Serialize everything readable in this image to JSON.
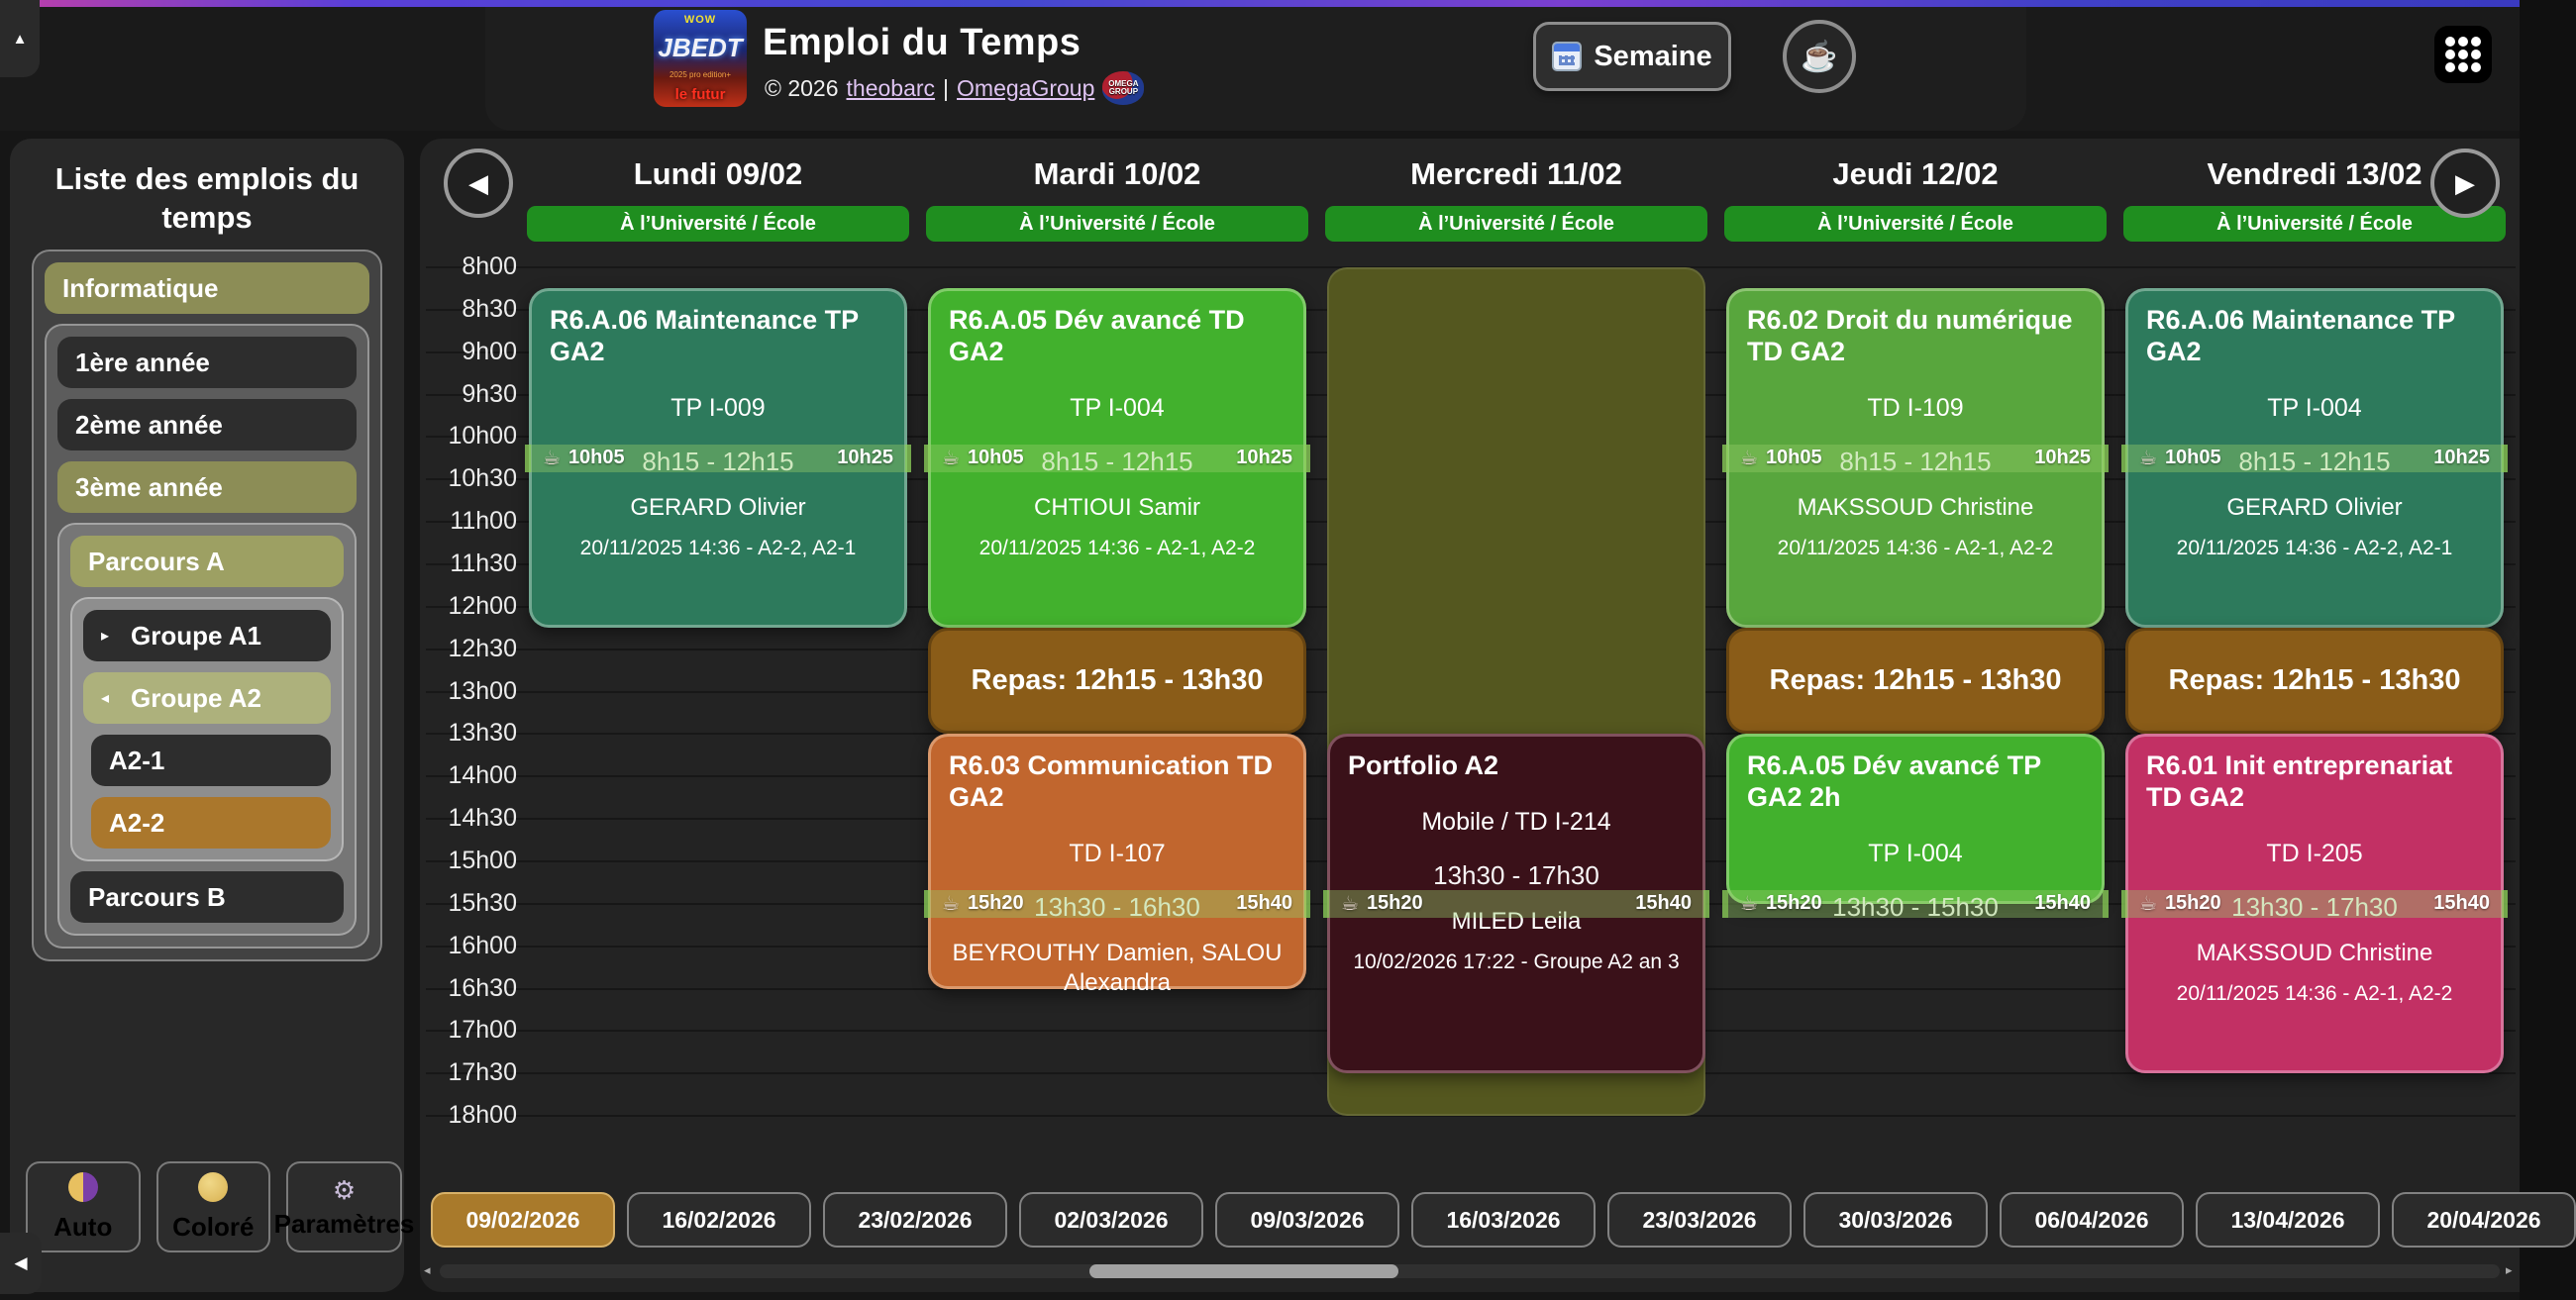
{
  "header": {
    "logo": {
      "wow": "WOW",
      "name": "JBEDT",
      "edition": "2025 pro edition+",
      "tagline": "le futur"
    },
    "title": "Emploi du Temps",
    "copyright": "© 2026",
    "author_link": "theobarc",
    "separator": "|",
    "org_link": "OmegaGroup",
    "omega_logo_line1": "OMEGA",
    "omega_logo_line2": "GROUP",
    "week_button_label": "Semaine",
    "coffee_button_icon": "☕",
    "scroll_top_icon": "▲"
  },
  "sidebar": {
    "title": "Liste des emplois du temps",
    "root_label": "Informatique",
    "year1": "1ère année",
    "year2": "2ème année",
    "year3": "3ème année",
    "parcours_a": "Parcours A",
    "groupe_a1": "Groupe A1",
    "groupe_a1_arrow": "▸",
    "groupe_a2": "Groupe A2",
    "groupe_a2_arrow": "◂",
    "a2_1": "A2-1",
    "a2_2": "A2-2",
    "parcours_b": "Parcours B",
    "auto_label": "Auto",
    "colore_label": "Coloré",
    "parametres_label": "Paramètres",
    "gear_icon": "⚙",
    "collapse_icon": "◀"
  },
  "calendar": {
    "prev_icon": "◀",
    "next_icon": "▶",
    "badge_text": "À l’Université / École",
    "days": [
      {
        "name": "Lundi 09/02"
      },
      {
        "name": "Mardi 10/02"
      },
      {
        "name": "Mercredi 11/02"
      },
      {
        "name": "Jeudi 12/02"
      },
      {
        "name": "Vendredi 13/02"
      }
    ],
    "times": [
      "8h00",
      "8h30",
      "9h00",
      "9h30",
      "10h00",
      "10h30",
      "11h00",
      "11h30",
      "12h00",
      "12h30",
      "13h00",
      "13h30",
      "14h00",
      "14h30",
      "15h00",
      "15h30",
      "16h00",
      "16h30",
      "17h00",
      "17h30",
      "18h00"
    ],
    "events": [
      {
        "day": 0,
        "kind": "class",
        "color": "teal",
        "start": "8h15",
        "end": "12h15",
        "title": "R6.A.06 Maintenance TP GA2",
        "room": "TP I-009",
        "time": "8h15 - 12h15",
        "teacher": "GERARD Olivier",
        "modified": "20/11/2025 14:36 - A2-2, A2-1"
      },
      {
        "day": 1,
        "kind": "class",
        "color": "green",
        "start": "8h15",
        "end": "12h15",
        "title": "R6.A.05 Dév avancé TD GA2",
        "room": "TP I-004",
        "time": "8h15 - 12h15",
        "teacher": "CHTIOUI Samir",
        "modified": "20/11/2025 14:36 - A2-1, A2-2"
      },
      {
        "day": 1,
        "kind": "repas",
        "start": "12h15",
        "end": "13h30",
        "label": "Repas: 12h15 - 13h30"
      },
      {
        "day": 1,
        "kind": "class",
        "color": "orange",
        "start": "13h30",
        "end": "16h30",
        "title": "R6.03 Communication TD GA2",
        "room": "TD I-107",
        "time": "13h30 - 16h30",
        "teacher": "BEYROUTHY Damien, SALOU Alexandra"
      },
      {
        "day": 2,
        "kind": "overlay",
        "start": "8h00",
        "end": "18h00"
      },
      {
        "day": 2,
        "kind": "class",
        "color": "maroon",
        "start": "13h30",
        "end": "17h30",
        "title": "Portfolio A2",
        "room": "Mobile / TD I-214",
        "time": "13h30 - 17h30",
        "teacher": "MILED Leila",
        "modified": "10/02/2026 17:22 - Groupe A2 an 3"
      },
      {
        "day": 3,
        "kind": "class",
        "color": "green2",
        "start": "8h15",
        "end": "12h15",
        "title": "R6.02 Droit du numérique TD GA2",
        "room": "TD I-109",
        "time": "8h15 - 12h15",
        "teacher": "MAKSSOUD Christine",
        "modified": "20/11/2025 14:36 - A2-1, A2-2"
      },
      {
        "day": 3,
        "kind": "repas",
        "start": "12h15",
        "end": "13h30",
        "label": "Repas: 12h15 - 13h30"
      },
      {
        "day": 3,
        "kind": "class",
        "color": "green",
        "start": "13h30",
        "end": "15h30",
        "title": "R6.A.05 Dév avancé TP GA2 2h",
        "room": "TP I-004",
        "time": "13h30 - 15h30"
      },
      {
        "day": 4,
        "kind": "class",
        "color": "teal",
        "start": "8h15",
        "end": "12h15",
        "title": "R6.A.06 Maintenance TP GA2",
        "room": "TP I-004",
        "time": "8h15 - 12h15",
        "teacher": "GERARD Olivier",
        "modified": "20/11/2025 14:36 - A2-2, A2-1"
      },
      {
        "day": 4,
        "kind": "repas",
        "start": "12h15",
        "end": "13h30",
        "label": "Repas: 12h15 - 13h30"
      },
      {
        "day": 4,
        "kind": "class",
        "color": "magenta",
        "start": "13h30",
        "end": "17h30",
        "title": "R6.01 Init entreprenariat TD GA2",
        "room": "TD I-205",
        "time": "13h30 - 17h30",
        "teacher": "MAKSSOUD Christine",
        "modified": "20/11/2025 14:36 - A2-1, A2-2"
      }
    ],
    "breaks": [
      {
        "day": 0,
        "start": "10h05",
        "end": "10h25"
      },
      {
        "day": 1,
        "start": "10h05",
        "end": "10h25"
      },
      {
        "day": 1,
        "start": "15h20",
        "end": "15h40"
      },
      {
        "day": 2,
        "start": "15h20",
        "end": "15h40"
      },
      {
        "day": 3,
        "start": "10h05",
        "end": "10h25"
      },
      {
        "day": 3,
        "start": "15h20",
        "end": "15h40"
      },
      {
        "day": 4,
        "start": "10h05",
        "end": "10h25"
      },
      {
        "day": 4,
        "start": "15h20",
        "end": "15h40"
      }
    ],
    "break_icon": "☕"
  },
  "date_tabs": [
    {
      "label": "09/02/2026",
      "selected": true
    },
    {
      "label": "16/02/2026",
      "selected": false
    },
    {
      "label": "23/02/2026",
      "selected": false
    },
    {
      "label": "02/03/2026",
      "selected": false
    },
    {
      "label": "09/03/2026",
      "selected": false
    },
    {
      "label": "16/03/2026",
      "selected": false
    },
    {
      "label": "23/03/2026",
      "selected": false
    },
    {
      "label": "30/03/2026",
      "selected": false
    },
    {
      "label": "06/04/2026",
      "selected": false
    },
    {
      "label": "13/04/2026",
      "selected": false
    },
    {
      "label": "20/04/2026",
      "selected": false
    }
  ],
  "scrollbar": {
    "left_icon": "◂",
    "right_icon": "▸"
  }
}
